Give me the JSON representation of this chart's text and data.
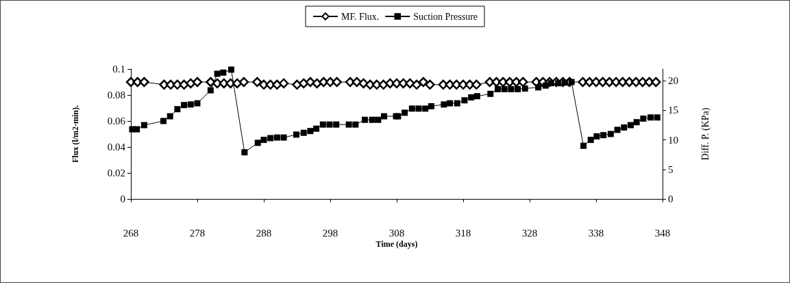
{
  "chart_data": {
    "type": "line",
    "xlabel": "Time (days)",
    "ylabel": "Flux (l/m2-min).",
    "y2label": "Diff. P. (KPa)",
    "xlim": [
      268,
      348
    ],
    "xticks": [
      268,
      278,
      288,
      298,
      308,
      318,
      328,
      338,
      348
    ],
    "ylim": [
      0,
      0.1
    ],
    "yticks": [
      0,
      0.02,
      0.04,
      0.06,
      0.08,
      0.1
    ],
    "y2lim": [
      0,
      22
    ],
    "y2ticks": [
      0,
      5,
      10,
      15,
      20
    ],
    "grid": false,
    "legend": "top",
    "line_style": "solid",
    "series": [
      {
        "name": "MF. Flux.",
        "color": "#000000",
        "marker": "diamond",
        "x": [
          268,
          269,
          270,
          273,
          274,
          275,
          276,
          277,
          278,
          280,
          281,
          282,
          283,
          284,
          285,
          287,
          288,
          289,
          290,
          291,
          293,
          294,
          295,
          296,
          297,
          298,
          299,
          301,
          302,
          303,
          304,
          305,
          306,
          307,
          308,
          309,
          310,
          311,
          312,
          313,
          315,
          316,
          317,
          318,
          319,
          320,
          322,
          323,
          324,
          325,
          326,
          327,
          329,
          330,
          331,
          332,
          333,
          334,
          336,
          337,
          338,
          339,
          340,
          341,
          342,
          343,
          344,
          345,
          346,
          347
        ],
        "values": [
          0.09,
          0.09,
          0.09,
          0.088,
          0.088,
          0.088,
          0.088,
          0.089,
          0.09,
          0.09,
          0.089,
          0.089,
          0.089,
          0.089,
          0.09,
          0.09,
          0.088,
          0.088,
          0.088,
          0.089,
          0.088,
          0.089,
          0.09,
          0.089,
          0.09,
          0.09,
          0.09,
          0.09,
          0.09,
          0.089,
          0.088,
          0.088,
          0.088,
          0.089,
          0.089,
          0.089,
          0.089,
          0.088,
          0.09,
          0.088,
          0.088,
          0.088,
          0.088,
          0.088,
          0.088,
          0.088,
          0.09,
          0.09,
          0.09,
          0.09,
          0.09,
          0.09,
          0.09,
          0.09,
          0.09,
          0.09,
          0.09,
          0.09,
          0.09,
          0.09,
          0.09,
          0.09,
          0.09,
          0.09,
          0.09,
          0.09,
          0.09,
          0.09,
          0.09,
          0.09
        ]
      },
      {
        "name": "Suction Pressure",
        "color": "#000000",
        "marker": "square",
        "axis": "y2",
        "x": [
          268.2,
          268.9,
          270,
          272.9,
          273.9,
          275,
          276,
          277,
          278,
          280,
          281,
          281.9,
          283.1,
          285.1,
          287.1,
          288,
          289,
          290,
          291,
          292.9,
          294,
          295,
          295.9,
          296.9,
          297.9,
          298.9,
          300.8,
          301.8,
          303.2,
          304.3,
          305.2,
          306.1,
          307.9,
          308.2,
          309.2,
          310.3,
          311.3,
          312.3,
          313.2,
          315.1,
          316,
          317.1,
          318.2,
          319.2,
          320.1,
          322.1,
          323.2,
          324.2,
          325.2,
          326.2,
          327.3,
          329.3,
          330.4,
          331.2,
          332.3,
          333.3,
          334.3,
          336.1,
          337.2,
          338.1,
          339.1,
          340.2,
          341.2,
          342.2,
          343.2,
          344.1,
          345.1,
          346.2,
          347.2
        ],
        "values": [
          11.8,
          11.8,
          12.5,
          13.2,
          14,
          15.2,
          15.9,
          16,
          16.2,
          18.4,
          21.2,
          21.4,
          21.9,
          7.9,
          9.5,
          10,
          10.3,
          10.4,
          10.4,
          10.9,
          11.2,
          11.5,
          11.9,
          12.6,
          12.6,
          12.6,
          12.6,
          12.6,
          13.4,
          13.4,
          13.4,
          14,
          14,
          14,
          14.6,
          15.3,
          15.3,
          15.3,
          15.7,
          16,
          16.2,
          16.2,
          16.7,
          17.2,
          17.4,
          17.8,
          18.6,
          18.6,
          18.6,
          18.6,
          18.7,
          18.9,
          19.2,
          19.6,
          19.6,
          19.7,
          19.8,
          9,
          10,
          10.6,
          10.8,
          11,
          11.7,
          12.1,
          12.5,
          13,
          13.6,
          13.8,
          13.8
        ]
      }
    ]
  }
}
